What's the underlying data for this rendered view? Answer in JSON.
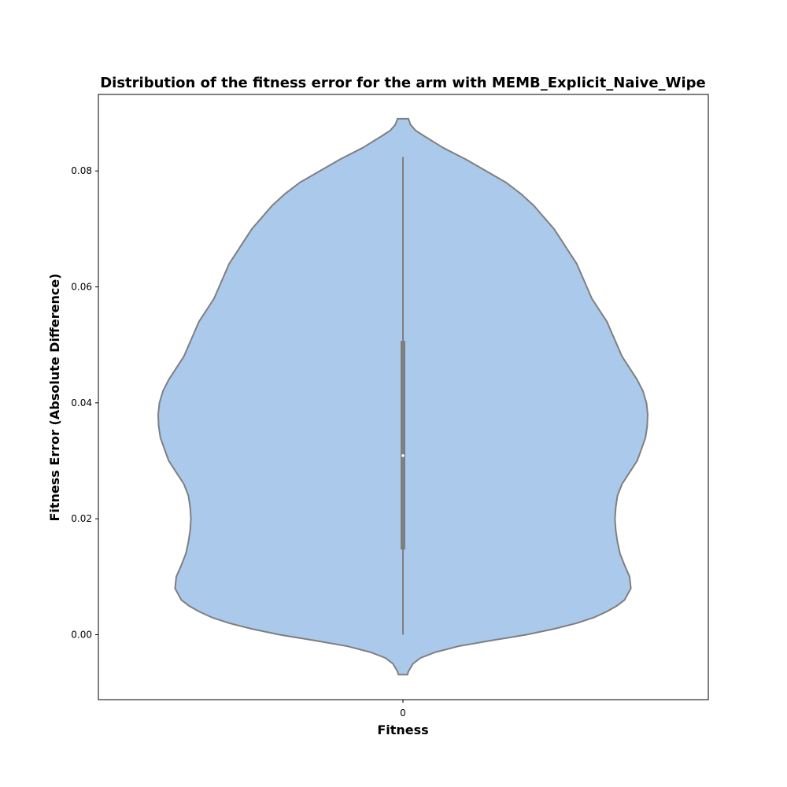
{
  "chart_data": {
    "type": "violin",
    "title": "Distribution of the fitness error for the arm with MEMB_Explicit_Naive_Wipe",
    "xlabel": "Fitness",
    "ylabel": "Fitness Error (Absolute Difference)",
    "categories": [
      "0"
    ],
    "ylim": [
      -0.0112,
      0.0932
    ],
    "yticks": [
      0.0,
      0.02,
      0.04,
      0.06,
      0.08
    ],
    "ytick_labels": [
      "0.00",
      "0.02",
      "0.04",
      "0.06",
      "0.08"
    ],
    "grid": false,
    "colors": {
      "violin_fill": "#abc9eb",
      "violin_edge": "#7f7f7f",
      "box": "#7f7f7f",
      "median": "#ffffff"
    },
    "box": {
      "whisker_low": 0.0,
      "q1": 0.0147,
      "median": 0.0309,
      "q3": 0.0507,
      "whisker_high": 0.0824
    },
    "violin_profile": {
      "y": [
        -0.0069,
        -0.0064,
        -0.005,
        -0.004,
        -0.003,
        -0.002,
        -0.001,
        0.0,
        0.001,
        0.002,
        0.003,
        0.004,
        0.005,
        0.006,
        0.008,
        0.01,
        0.012,
        0.014,
        0.016,
        0.018,
        0.02,
        0.022,
        0.024,
        0.026,
        0.028,
        0.03,
        0.032,
        0.034,
        0.036,
        0.038,
        0.04,
        0.042,
        0.044,
        0.046,
        0.048,
        0.05,
        0.052,
        0.054,
        0.056,
        0.058,
        0.06,
        0.062,
        0.064,
        0.066,
        0.068,
        0.07,
        0.072,
        0.074,
        0.076,
        0.078,
        0.08,
        0.082,
        0.084,
        0.086,
        0.087,
        0.088,
        0.089
      ],
      "half_width": [
        0.018,
        0.021,
        0.04,
        0.07,
        0.13,
        0.22,
        0.35,
        0.49,
        0.6,
        0.69,
        0.76,
        0.81,
        0.85,
        0.88,
        0.905,
        0.9,
        0.88,
        0.862,
        0.852,
        0.845,
        0.842,
        0.845,
        0.852,
        0.87,
        0.9,
        0.93,
        0.947,
        0.963,
        0.97,
        0.972,
        0.967,
        0.953,
        0.93,
        0.9,
        0.87,
        0.85,
        0.83,
        0.81,
        0.78,
        0.75,
        0.73,
        0.71,
        0.69,
        0.66,
        0.63,
        0.6,
        0.56,
        0.52,
        0.47,
        0.41,
        0.33,
        0.25,
        0.16,
        0.085,
        0.05,
        0.03,
        0.022
      ]
    }
  }
}
